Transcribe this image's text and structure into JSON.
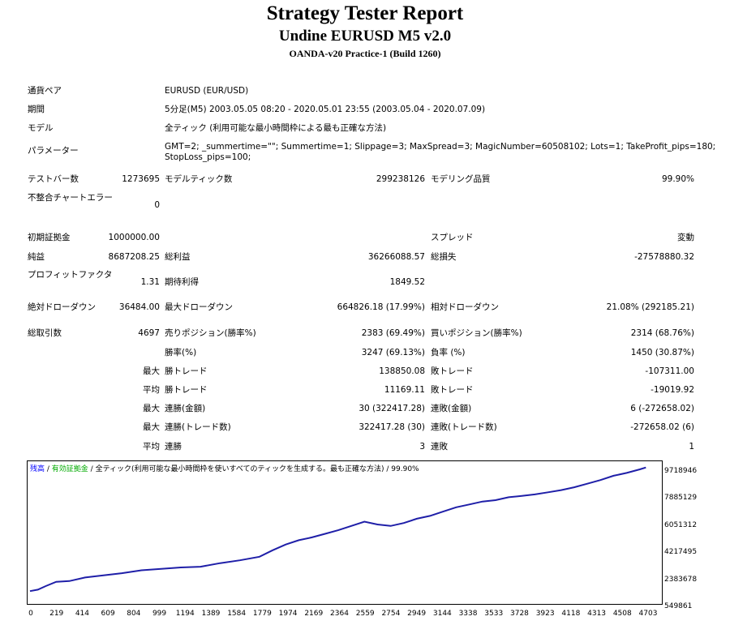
{
  "report": {
    "title": "Strategy Tester Report",
    "subtitle": "Undine EURUSD M5 v2.0",
    "build": "OANDA-v20 Practice-1 (Build 1260)"
  },
  "settings": {
    "symbol_label": "通貨ペア",
    "symbol": "EURUSD (EUR/USD)",
    "period_label": "期間",
    "period": "5分足(M5) 2003.05.05 08:20 - 2020.05.01 23:55 (2003.05.04 - 2020.07.09)",
    "model_label": "モデル",
    "model": "全ティック (利用可能な最小時間枠による最も正確な方法)",
    "params_label": "パラメーター",
    "params_line1": "GMT=2; _summertime=\"\"; Summertime=1; Slippage=3; MaxSpread=3; MagicNumber=60508102; Lots=1; TakeProfit_pips=180;",
    "params_line2": "StopLoss_pips=100;"
  },
  "quality": {
    "bars_label": "テストバー数",
    "bars": "1273695",
    "ticks_label": "モデルティック数",
    "ticks": "299238126",
    "quality_label": "モデリング品質",
    "quality": "99.90%",
    "mismatch_label": "不整合チャートエラー",
    "mismatch": "0"
  },
  "summary": {
    "deposit_label": "初期証拠金",
    "deposit": "1000000.00",
    "spread_label": "スプレッド",
    "spread": "変動",
    "net_label": "純益",
    "net": "8687208.25",
    "gross_profit_label": "総利益",
    "gross_profit": "36266088.57",
    "gross_loss_label": "総損失",
    "gross_loss": "-27578880.32",
    "pf_label": "プロフィットファクタ",
    "pf": "1.31",
    "expected_label": "期待利得",
    "expected": "1849.52",
    "abs_dd_label": "絶対ドローダウン",
    "abs_dd": "36484.00",
    "max_dd_label": "最大ドローダウン",
    "max_dd": "664826.18 (17.99%)",
    "rel_dd_label": "相対ドローダウン",
    "rel_dd": "21.08% (292185.21)",
    "total_trades_label": "総取引数",
    "total_trades": "4697",
    "short_label": "売りポジション(勝率%)",
    "short": "2383 (69.49%)",
    "long_label": "買いポジション(勝率%)",
    "long": "2314 (68.76%)",
    "win_rate_label": "勝率(%)",
    "win_rate": "3247 (69.13%)",
    "loss_rate_label": "負率 (%)",
    "loss_rate": "1450 (30.87%)",
    "max_label": "最大",
    "avg_label": "平均",
    "largest_win_label": "勝トレード",
    "largest_win": "138850.08",
    "largest_loss_label": "敗トレード",
    "largest_loss": "-107311.00",
    "avg_win_label": "勝トレード",
    "avg_win": "11169.11",
    "avg_loss_label": "敗トレード",
    "avg_loss": "-19019.92",
    "max_consec_win_label": "連勝(金額)",
    "max_consec_win": "30 (322417.28)",
    "max_consec_loss_label": "連敗(金額)",
    "max_consec_loss": "6 (-272658.02)",
    "max_consec_profit_label": "連勝(トレード数)",
    "max_consec_profit": "322417.28 (30)",
    "max_consec_lossamt_label": "連敗(トレード数)",
    "max_consec_lossamt": "-272658.02 (6)",
    "avg_consec_win_label": "連勝",
    "avg_consec_win": "3",
    "avg_consec_loss_label": "連敗",
    "avg_consec_loss": "1"
  },
  "legend": {
    "balance": "残高",
    "sep1": " / ",
    "equity": "有効証拠金",
    "sep2": " / ",
    "model": "全ティック(利用可能な最小時間枠を使いすべてのティックを生成する。最も正確な方法)",
    "quality": " / 99.90%",
    "colors": {
      "balance": "#0000ff",
      "equity": "#00aa00",
      "line": "#1f1fa8"
    }
  },
  "chart_data": {
    "type": "line",
    "x_ticks": [
      "0",
      "219",
      "414",
      "609",
      "804",
      "999",
      "1194",
      "1389",
      "1584",
      "1779",
      "1974",
      "2169",
      "2364",
      "2559",
      "2754",
      "2949",
      "3144",
      "3338",
      "3533",
      "3728",
      "3923",
      "4118",
      "4313",
      "4508",
      "4703"
    ],
    "y_ticks": [
      "9718946",
      "7885129",
      "6051312",
      "4217495",
      "2383678",
      "549861"
    ],
    "ylim": [
      549861,
      9718946
    ],
    "xlim": [
      0,
      4800
    ],
    "series": [
      {
        "x": [
          0,
          60,
          120,
          200,
          300,
          420,
          560,
          700,
          850,
          1000,
          1150,
          1300,
          1450,
          1600,
          1750,
          1850,
          1950,
          2050,
          2150,
          2250,
          2350,
          2450,
          2550,
          2650,
          2750,
          2850,
          2950,
          3050,
          3150,
          3250,
          3350,
          3450,
          3550,
          3650,
          3750,
          3850,
          3950,
          4050,
          4150,
          4250,
          4350,
          4450,
          4550,
          4650,
          4697
        ],
        "y": [
          1050000,
          1150000,
          1400000,
          1700000,
          1750000,
          2000000,
          2150000,
          2300000,
          2500000,
          2600000,
          2700000,
          2750000,
          3000000,
          3200000,
          3450000,
          3900000,
          4300000,
          4600000,
          4800000,
          5050000,
          5300000,
          5600000,
          5900000,
          5700000,
          5600000,
          5800000,
          6100000,
          6300000,
          6600000,
          6900000,
          7100000,
          7300000,
          7400000,
          7600000,
          7700000,
          7800000,
          7950000,
          8100000,
          8300000,
          8550000,
          8800000,
          9100000,
          9300000,
          9550000,
          9680000
        ]
      }
    ]
  }
}
